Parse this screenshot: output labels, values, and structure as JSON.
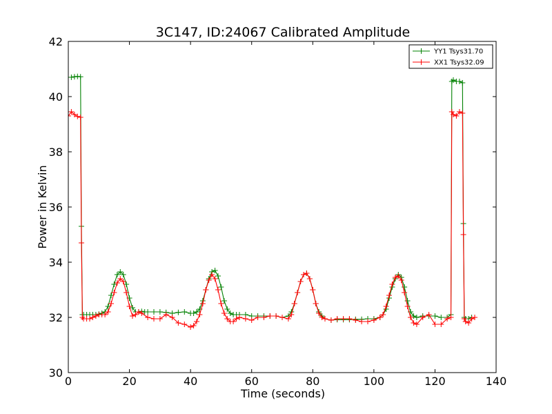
{
  "chart_data": {
    "type": "line",
    "title": "3C147, ID:24067 Calibrated Amplitude",
    "xlabel": "Time (seconds)",
    "ylabel": "Power in Kelvin",
    "xlim": [
      0,
      140
    ],
    "ylim": [
      30,
      42
    ],
    "xticks": [
      "0",
      "20",
      "40",
      "60",
      "80",
      "100",
      "120",
      "140"
    ],
    "yticks": [
      "30",
      "32",
      "34",
      "36",
      "38",
      "40",
      "42"
    ],
    "grid": false,
    "legend_position": "top-right",
    "marker": "+",
    "series": [
      {
        "name": "YY1 Tsys31.70",
        "color": "#008000",
        "x": [
          0,
          1,
          2,
          3,
          4,
          4.3,
          4.6,
          5,
          6,
          7,
          8,
          9,
          10,
          11,
          12,
          13,
          14,
          15,
          16,
          17,
          18,
          19,
          20,
          21,
          22,
          23,
          24,
          25,
          26,
          28,
          30,
          32,
          34,
          36,
          38,
          40,
          41,
          42,
          43,
          44,
          45,
          46,
          47,
          48,
          49,
          50,
          51,
          52,
          53,
          54,
          55,
          56,
          58,
          60,
          62,
          64,
          66,
          68,
          70,
          72,
          73,
          74,
          75,
          76,
          77,
          78,
          79,
          80,
          81,
          82,
          83,
          84,
          86,
          88,
          90,
          92,
          94,
          96,
          98,
          100,
          102,
          103,
          104,
          105,
          106,
          107,
          108,
          109,
          110,
          111,
          112,
          113,
          114,
          116,
          118,
          120,
          122,
          124,
          125.2,
          125.5,
          126,
          127,
          128,
          129,
          129.3,
          129.6,
          130,
          131,
          132,
          133
        ],
        "values": [
          40.7,
          40.7,
          40.72,
          40.73,
          40.72,
          35.3,
          32.1,
          32.1,
          32.1,
          32.1,
          32.1,
          32.1,
          32.12,
          32.15,
          32.2,
          32.4,
          32.8,
          33.2,
          33.55,
          33.65,
          33.55,
          33.2,
          32.7,
          32.35,
          32.2,
          32.2,
          32.22,
          32.2,
          32.2,
          32.2,
          32.2,
          32.18,
          32.15,
          32.18,
          32.2,
          32.15,
          32.15,
          32.2,
          32.3,
          32.6,
          33.0,
          33.4,
          33.65,
          33.7,
          33.5,
          33.1,
          32.6,
          32.3,
          32.15,
          32.1,
          32.1,
          32.1,
          32.1,
          32.05,
          32.05,
          32.05,
          32.05,
          32.05,
          32.0,
          32.05,
          32.2,
          32.5,
          32.9,
          33.3,
          33.55,
          33.6,
          33.4,
          33.0,
          32.5,
          32.2,
          32.05,
          31.95,
          31.9,
          31.92,
          31.92,
          31.92,
          31.93,
          31.93,
          31.95,
          31.95,
          32.0,
          32.1,
          32.3,
          32.7,
          33.1,
          33.4,
          33.55,
          33.45,
          33.1,
          32.6,
          32.2,
          32.05,
          32.0,
          32.05,
          32.05,
          32.05,
          32.0,
          32.0,
          32.1,
          40.55,
          40.6,
          40.55,
          40.55,
          40.5,
          35.4,
          32.0,
          31.95,
          31.95,
          32.0,
          32.0
        ]
      },
      {
        "name": "XX1 Tsys32.09",
        "color": "#ff0000",
        "x": [
          0,
          1,
          2,
          3,
          4,
          4.3,
          4.6,
          5,
          6,
          7,
          8,
          9,
          10,
          11,
          12,
          13,
          14,
          15,
          16,
          17,
          18,
          19,
          20,
          21,
          22,
          23,
          24,
          26,
          28,
          30,
          32,
          34,
          36,
          38,
          40,
          41,
          42,
          43,
          44,
          45,
          46,
          47,
          48,
          49,
          50,
          51,
          52,
          53,
          54,
          55,
          56,
          58,
          60,
          62,
          64,
          66,
          68,
          70,
          72,
          73,
          74,
          75,
          76,
          77,
          78,
          79,
          80,
          81,
          82,
          83,
          84,
          86,
          88,
          90,
          92,
          94,
          96,
          98,
          100,
          102,
          103,
          104,
          105,
          106,
          107,
          108,
          109,
          110,
          111,
          112,
          113,
          114,
          116,
          118,
          120,
          122,
          124,
          125.2,
          125.5,
          126,
          127,
          128,
          129,
          129.3,
          129.6,
          130,
          131,
          132,
          133
        ],
        "values": [
          39.3,
          39.45,
          39.35,
          39.28,
          39.25,
          34.7,
          32.0,
          31.95,
          31.95,
          31.95,
          32.0,
          32.05,
          32.1,
          32.1,
          32.1,
          32.2,
          32.5,
          32.9,
          33.25,
          33.4,
          33.3,
          32.9,
          32.4,
          32.05,
          32.1,
          32.2,
          32.15,
          32.0,
          31.95,
          31.95,
          32.1,
          32.0,
          31.8,
          31.75,
          31.65,
          31.7,
          31.85,
          32.1,
          32.5,
          33.0,
          33.35,
          33.55,
          33.4,
          33.0,
          32.5,
          32.15,
          31.95,
          31.85,
          31.85,
          31.95,
          32.0,
          31.95,
          31.9,
          32.0,
          32.0,
          32.05,
          32.05,
          32.0,
          31.95,
          32.1,
          32.5,
          32.9,
          33.3,
          33.55,
          33.6,
          33.4,
          33.0,
          32.5,
          32.15,
          32.0,
          31.95,
          31.9,
          31.95,
          31.95,
          31.95,
          31.9,
          31.85,
          31.85,
          31.9,
          32.0,
          32.1,
          32.4,
          32.8,
          33.2,
          33.45,
          33.5,
          33.35,
          32.9,
          32.4,
          32.0,
          31.8,
          31.75,
          32.0,
          32.1,
          31.75,
          31.75,
          31.95,
          32.0,
          39.45,
          39.35,
          39.3,
          39.45,
          39.4,
          35.0,
          31.95,
          31.85,
          31.8,
          31.95,
          32.0
        ]
      }
    ]
  }
}
